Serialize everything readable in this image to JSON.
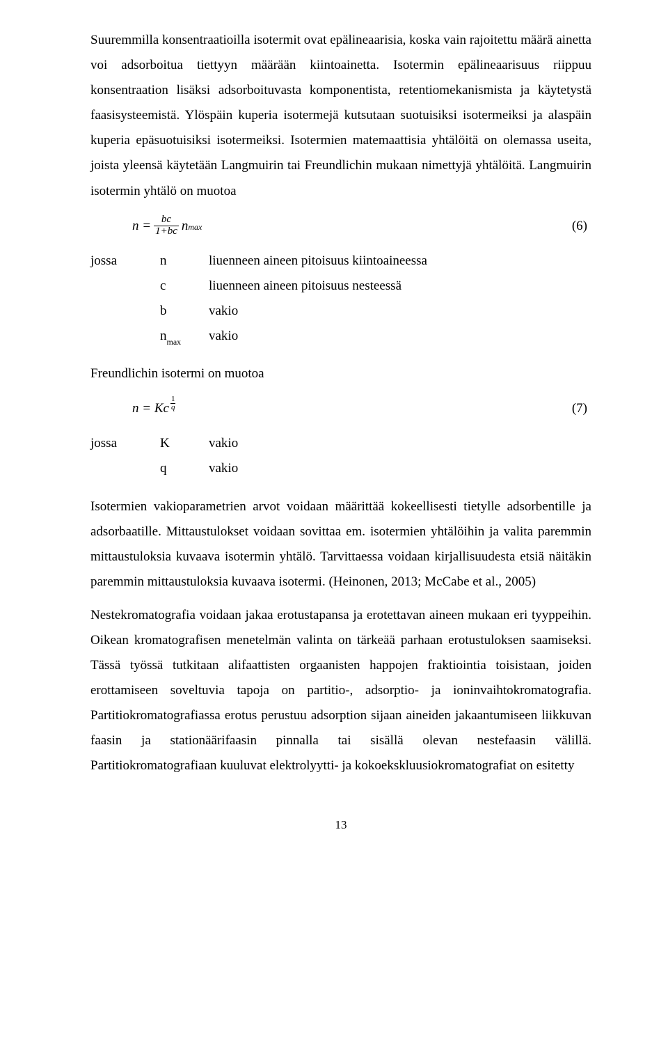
{
  "para1": "Suuremmilla konsentraatioilla isotermit ovat epälineaarisia, koska vain rajoitettu määrä ainetta voi adsorboitua tiettyyn määrään kiintoainetta. Isotermin epälineaarisuus riippuu konsentraation lisäksi adsorboituvasta komponentista, retentiomekanismista ja käytetystä faasisysteemistä. Ylöspäin kuperia isotermejä kutsutaan suotuisiksi isotermeiksi ja alaspäin kuperia epäsuotuisiksi isotermeiksi. Isotermien matemaattisia yhtälöitä on olemassa useita, joista yleensä käytetään Langmuirin tai Freundlichin mukaan nimettyjä yhtälöitä. Langmuirin isotermin yhtälö on muotoa",
  "eq6": {
    "lhs": "n =",
    "frac_num": "bc",
    "frac_den": "1+bc",
    "tail_base": "n",
    "tail_sub": "max",
    "num": "(6)"
  },
  "defs1": {
    "lead": "jossa",
    "rows": [
      {
        "sym": "n",
        "desc": "liuenneen aineen pitoisuus kiintoaineessa"
      },
      {
        "sym": "c",
        "desc": "liuenneen aineen pitoisuus nesteessä"
      },
      {
        "sym": "b",
        "desc": "vakio"
      },
      {
        "sym": "n",
        "sub": "max",
        "desc": "vakio"
      }
    ]
  },
  "para2": "Freundlichin isotermi on muotoa",
  "eq7": {
    "lhs": "n = Kc",
    "sup_num": "1",
    "sup_den": "q",
    "num": "(7)"
  },
  "defs2": {
    "lead": "jossa",
    "rows": [
      {
        "sym": "K",
        "desc": "vakio"
      },
      {
        "sym": "q",
        "desc": "vakio"
      }
    ]
  },
  "para3": "Isotermien vakioparametrien arvot voidaan määrittää kokeellisesti tietylle adsorbentille ja adsorbaatille. Mittaustulokset voidaan sovittaa em. isotermien yhtälöihin ja valita paremmin mittaustuloksia kuvaava isotermin yhtälö. Tarvittaessa voidaan kirjallisuudesta etsiä näitäkin paremmin mittaustuloksia kuvaava isotermi. (Heinonen, 2013; McCabe et al., 2005)",
  "para4": "Nestekromatografia voidaan jakaa erotustapansa ja erotettavan aineen mukaan eri tyyppeihin. Oikean kromatografisen menetelmän valinta on tärkeää parhaan erotustuloksen saamiseksi. Tässä työssä tutkitaan alifaattisten orgaanisten happojen fraktiointia toisistaan, joiden erottamiseen soveltuvia tapoja on partitio-, adsorptio- ja ioninvaihtokromatografia. Partitiokromatografiassa erotus perustuu adsorption sijaan aineiden jakaantumiseen liikkuvan faasin ja stationäärifaasin pinnalla tai sisällä olevan nestefaasin välillä. Partitiokromatografiaan kuuluvat elektrolyytti- ja kokoekskluusiokromatografiat on esitetty",
  "pagenum": "13"
}
